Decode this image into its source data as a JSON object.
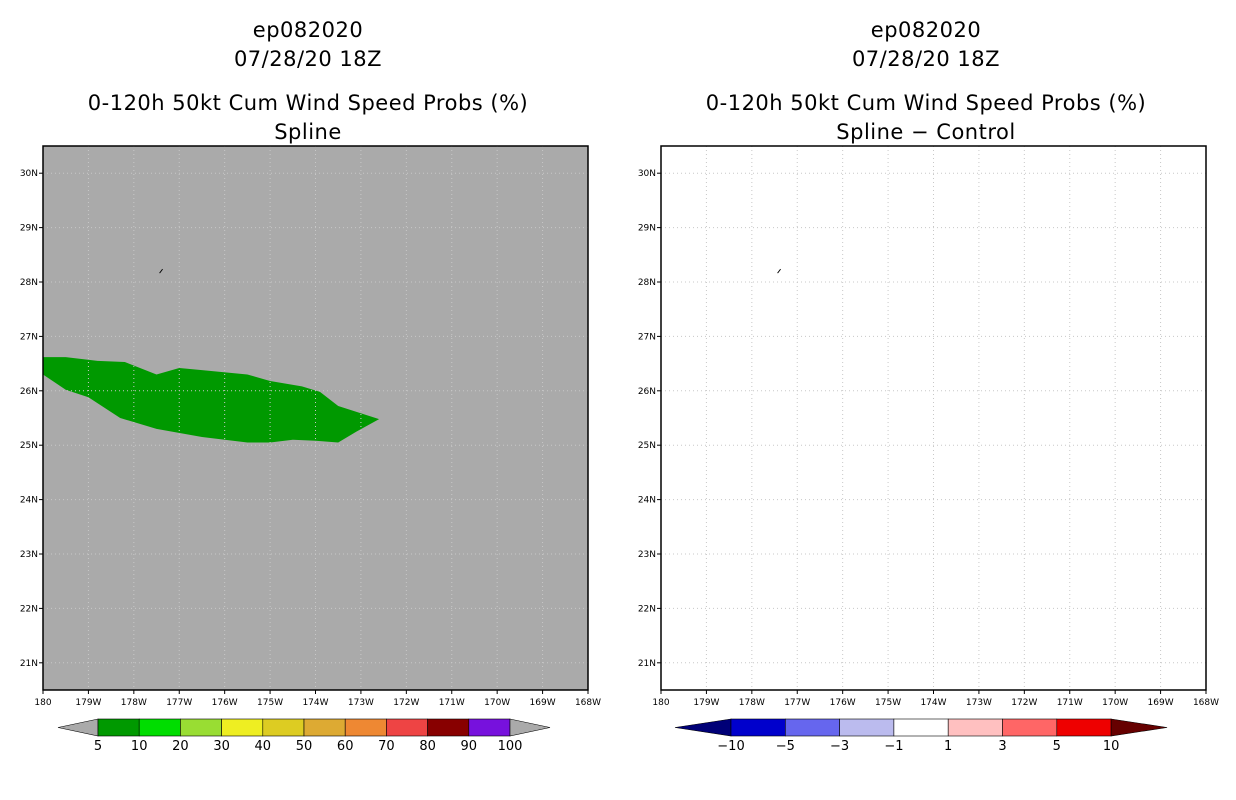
{
  "chart_data": [
    {
      "type": "map",
      "storm_id": "ep082020",
      "datetime": "07/28/20 18Z",
      "title": "0-120h 50kt Cum Wind Speed Probs (%)",
      "subtitle": "Spline",
      "lon_range": [
        -180,
        -168
      ],
      "lat_range": [
        20.5,
        30.5
      ],
      "x_ticks": [
        "180",
        "179W",
        "178W",
        "177W",
        "176W",
        "175W",
        "174W",
        "173W",
        "172W",
        "171W",
        "170W",
        "169W",
        "168W"
      ],
      "y_ticks": [
        "21N",
        "22N",
        "23N",
        "24N",
        "25N",
        "26N",
        "27N",
        "28N",
        "29N",
        "30N"
      ],
      "background_color": "#aaaaaa",
      "prob_region": {
        "level": "5-10",
        "color": "#009900",
        "polygon_lonlat": [
          [
            -180,
            26.62
          ],
          [
            -179.5,
            26.62
          ],
          [
            -178.8,
            26.55
          ],
          [
            -178.2,
            26.53
          ],
          [
            -177.5,
            26.3
          ],
          [
            -177.0,
            26.42
          ],
          [
            -176.5,
            26.38
          ],
          [
            -175.5,
            26.3
          ],
          [
            -175.0,
            26.18
          ],
          [
            -174.3,
            26.08
          ],
          [
            -173.9,
            25.98
          ],
          [
            -173.5,
            25.72
          ],
          [
            -172.6,
            25.48
          ],
          [
            -173.1,
            25.25
          ],
          [
            -173.5,
            25.05
          ],
          [
            -174.0,
            25.08
          ],
          [
            -174.5,
            25.1
          ],
          [
            -175.0,
            25.05
          ],
          [
            -175.5,
            25.05
          ],
          [
            -176.5,
            25.15
          ],
          [
            -177.5,
            25.3
          ],
          [
            -178.3,
            25.5
          ],
          [
            -179.0,
            25.88
          ],
          [
            -179.5,
            26.02
          ],
          [
            -180,
            26.3
          ]
        ]
      },
      "marker_lonlat": [
        -177.4,
        28.2
      ],
      "colorbar": {
        "labels": [
          "5",
          "10",
          "20",
          "30",
          "40",
          "50",
          "60",
          "70",
          "80",
          "90",
          "100"
        ],
        "colors": [
          "#009900",
          "#00dd00",
          "#99dd33",
          "#eeee22",
          "#ddcc22",
          "#ddaa33",
          "#ee8833",
          "#ee4444",
          "#880000",
          "#7711dd"
        ],
        "left_arrow_color": "#aaaaaa",
        "right_arrow_color": "#aaaaaa"
      }
    },
    {
      "type": "map",
      "storm_id": "ep082020",
      "datetime": "07/28/20 18Z",
      "title": "0-120h 50kt Cum Wind Speed Probs (%)",
      "subtitle": "Spline − Control",
      "lon_range": [
        -180,
        -168
      ],
      "lat_range": [
        20.5,
        30.5
      ],
      "x_ticks": [
        "180",
        "179W",
        "178W",
        "177W",
        "176W",
        "175W",
        "174W",
        "173W",
        "172W",
        "171W",
        "170W",
        "169W",
        "168W"
      ],
      "y_ticks": [
        "21N",
        "22N",
        "23N",
        "24N",
        "25N",
        "26N",
        "27N",
        "28N",
        "29N",
        "30N"
      ],
      "background_color": "#ffffff",
      "marker_lonlat": [
        -177.4,
        28.2
      ],
      "colorbar": {
        "labels": [
          "−10",
          "−5",
          "−3",
          "−1",
          "1",
          "3",
          "5",
          "10"
        ],
        "colors": [
          "#0000cc",
          "#6666ee",
          "#bbbbee",
          "#ffffff",
          "#ffc0c0",
          "#ff6666",
          "#ee0000"
        ],
        "left_arrow_color": "#000077",
        "right_arrow_color": "#660000"
      }
    }
  ]
}
